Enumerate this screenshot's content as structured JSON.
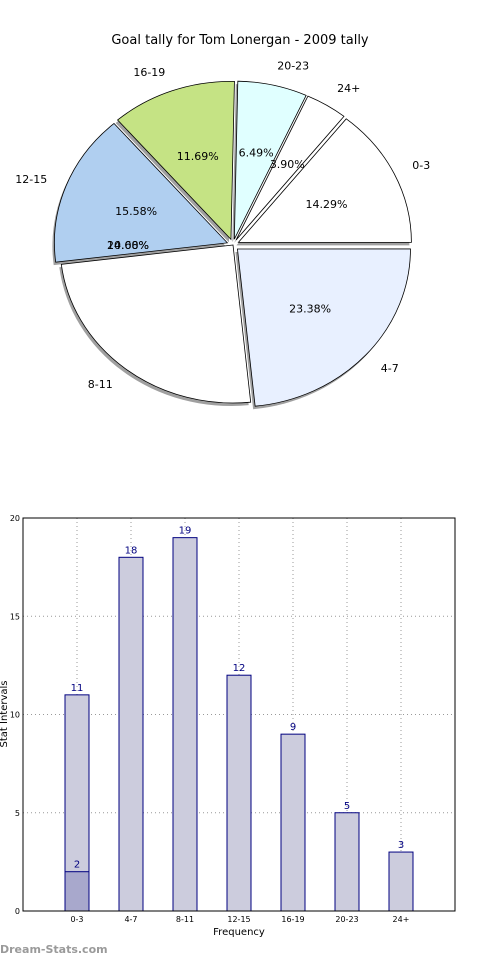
{
  "chart_data": [
    {
      "type": "pie",
      "title": "Goal tally for Tom Lonergan - 2009 tally",
      "slices": [
        {
          "label": "0-3",
          "percent": 14.29,
          "color": "#ffffff"
        },
        {
          "label": "24+",
          "percent": 3.9,
          "color": "#ffffff"
        },
        {
          "label": "20-23",
          "percent": 6.49,
          "color": "#e0ffff"
        },
        {
          "label": "16-19",
          "percent": 11.69,
          "color": "#c5e384"
        },
        {
          "label": "12-15",
          "percent": 15.58,
          "color": "#b0cff0"
        },
        {
          "label": "8-11",
          "percent": 24.68,
          "color": "#ffffff"
        },
        {
          "label": "4-7",
          "percent": 23.38,
          "color": "#e8f0ff"
        }
      ],
      "overlay_labels": [
        "24.68%",
        "10.00%"
      ]
    },
    {
      "type": "bar",
      "categories": [
        "0-3",
        "4-7",
        "8-11",
        "12-15",
        "16-19",
        "20-23",
        "24+"
      ],
      "series": [
        {
          "values": [
            11,
            18,
            19,
            12,
            9,
            5,
            3
          ]
        },
        {
          "values": [
            2,
            null,
            null,
            null,
            null,
            null,
            null
          ]
        }
      ],
      "xlabel": "Frequency",
      "ylabel": "Stat Intervals",
      "ylim": [
        0,
        20
      ],
      "yticks": [
        "0",
        "5",
        "10",
        "15",
        "20"
      ],
      "grid": true,
      "colors": {
        "bar_fill": "#ccccdd",
        "bar_edge": "#000080",
        "inner_fill": "#a8a8cc",
        "label": "#000080"
      }
    }
  ],
  "watermark": "Dream-Stats.com"
}
